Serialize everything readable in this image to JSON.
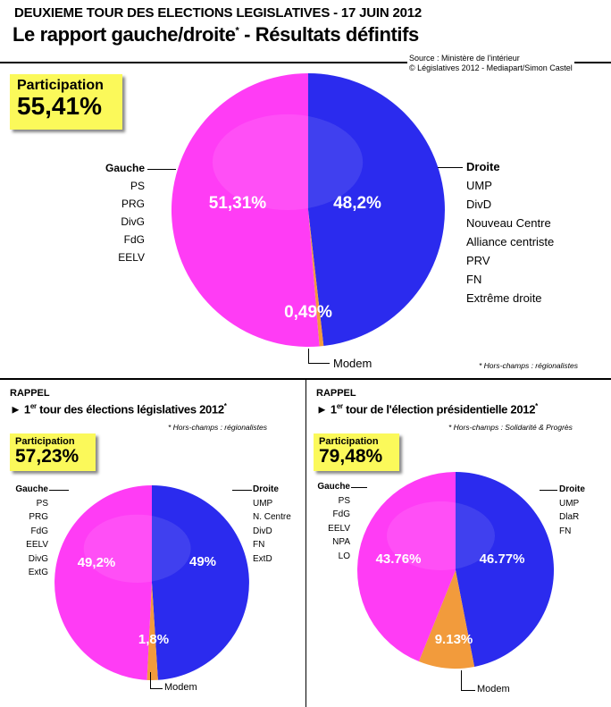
{
  "header": {
    "overline": "DEUXIEME TOUR DES ELECTIONS LEGISLATIVES - 17 JUIN 2012",
    "title": "Le rapport gauche/droite",
    "title_star": "*",
    "title_rest": " - Résultats défintifs",
    "source": "Source : Ministère de l'intérieur",
    "credit": "© Législatives 2012 - Mediapart/Simon Castel"
  },
  "colors": {
    "gauche": "#ff3cf5",
    "droite": "#2b2bee",
    "modem": "#f29b3c"
  },
  "main": {
    "participation_label": "Participation",
    "participation_value": "55,41%",
    "gauche_title": "Gauche",
    "gauche_items": [
      "PS",
      "PRG",
      "DivG",
      "FdG",
      "EELV"
    ],
    "droite_title": "Droite",
    "droite_items": [
      "UMP",
      "DivD",
      "Nouveau Centre",
      "Alliance centriste",
      "PRV",
      "FN",
      "Extrême droite"
    ],
    "modem_label": "Modem",
    "footnote": "* Hors-champs : régionalistes"
  },
  "left": {
    "rappel": "RAPPEL",
    "subtitle_a": "► 1",
    "subtitle_sup": "er",
    "subtitle_b": " tour des élections législatives 2012",
    "subtitle_star": "*",
    "note": "* Hors-champs : régionalistes",
    "participation_label": "Participation",
    "participation_value": "57,23%",
    "gauche_title": "Gauche",
    "gauche_items": [
      "PS",
      "PRG",
      "FdG",
      "EELV",
      "DivG",
      "ExtG"
    ],
    "droite_title": "Droite",
    "droite_items": [
      "UMP",
      "N. Centre",
      "DivD",
      "FN",
      "ExtD"
    ],
    "modem_label": "Modem"
  },
  "right": {
    "rappel": "RAPPEL",
    "subtitle_a": "► 1",
    "subtitle_sup": "er",
    "subtitle_b": " tour de l'élection présidentielle 2012",
    "subtitle_star": "*",
    "note": "* Hors-champs : Solidarité & Progrès",
    "participation_label": "Participation",
    "participation_value": "79,48%",
    "gauche_title": "Gauche",
    "gauche_items": [
      "PS",
      "FdG",
      "EELV",
      "NPA",
      "LO"
    ],
    "droite_title": "Droite",
    "droite_items": [
      "UMP",
      "DlaR",
      "FN"
    ],
    "modem_label": "Modem"
  },
  "chart_data": [
    {
      "type": "pie",
      "categories": [
        "Droite",
        "Modem",
        "Gauche"
      ],
      "values": [
        48.2,
        0.49,
        51.31
      ],
      "labels": [
        "48,2%",
        "0,49%",
        "51,31%"
      ]
    },
    {
      "type": "pie",
      "categories": [
        "Droite",
        "Modem",
        "Gauche"
      ],
      "values": [
        49,
        1.8,
        49.2
      ],
      "labels": [
        "49%",
        "1,8%",
        "49,2%"
      ]
    },
    {
      "type": "pie",
      "categories": [
        "Droite",
        "Modem",
        "Gauche"
      ],
      "values": [
        46.77,
        9.13,
        43.76
      ],
      "labels": [
        "46.77%",
        "9.13%",
        "43.76%"
      ]
    }
  ]
}
